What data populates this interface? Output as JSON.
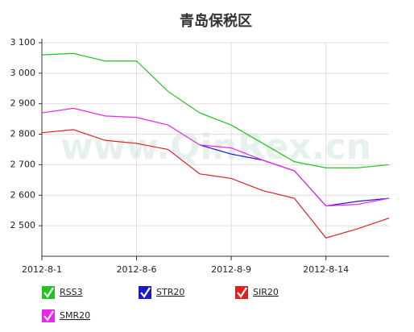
{
  "chart_data": {
    "type": "line",
    "title": "青岛保税区",
    "watermark": "www.QinRex.cn",
    "categories": [
      "2012-8-1",
      null,
      null,
      "2012-8-6",
      null,
      null,
      "2012-8-9",
      null,
      null,
      "2012-8-14",
      null,
      null
    ],
    "series": [
      {
        "name": "RSS3",
        "color": "#22c422",
        "values": [
          3060,
          3065,
          3040,
          3040,
          2940,
          2870,
          2830,
          2770,
          2710,
          2690,
          2690,
          2700
        ]
      },
      {
        "name": "STR20",
        "color": "#1a1acc",
        "values": [
          null,
          null,
          null,
          null,
          null,
          2765,
          2735,
          2715,
          2680,
          2565,
          2580,
          2590
        ]
      },
      {
        "name": "SIR20",
        "color": "#dd2222",
        "values": [
          2805,
          2815,
          2780,
          2770,
          2750,
          2670,
          2655,
          2615,
          2590,
          2460,
          2490,
          2525
        ]
      },
      {
        "name": "SMR20",
        "color": "#ee22ee",
        "values": [
          2870,
          2885,
          2860,
          2855,
          2830,
          2765,
          2755,
          2715,
          2680,
          2565,
          2570,
          2590
        ]
      }
    ],
    "ylim": [
      2400,
      3100
    ],
    "yticks": [
      {
        "value": 2500,
        "label": "2 500"
      },
      {
        "value": 2600,
        "label": "2 600"
      },
      {
        "value": 2700,
        "label": "2 700"
      },
      {
        "value": 2800,
        "label": "2 800"
      },
      {
        "value": 2900,
        "label": "2 900"
      },
      {
        "value": 3000,
        "label": "3 000"
      },
      {
        "value": 3100,
        "label": "3 100"
      }
    ],
    "grid": true
  }
}
